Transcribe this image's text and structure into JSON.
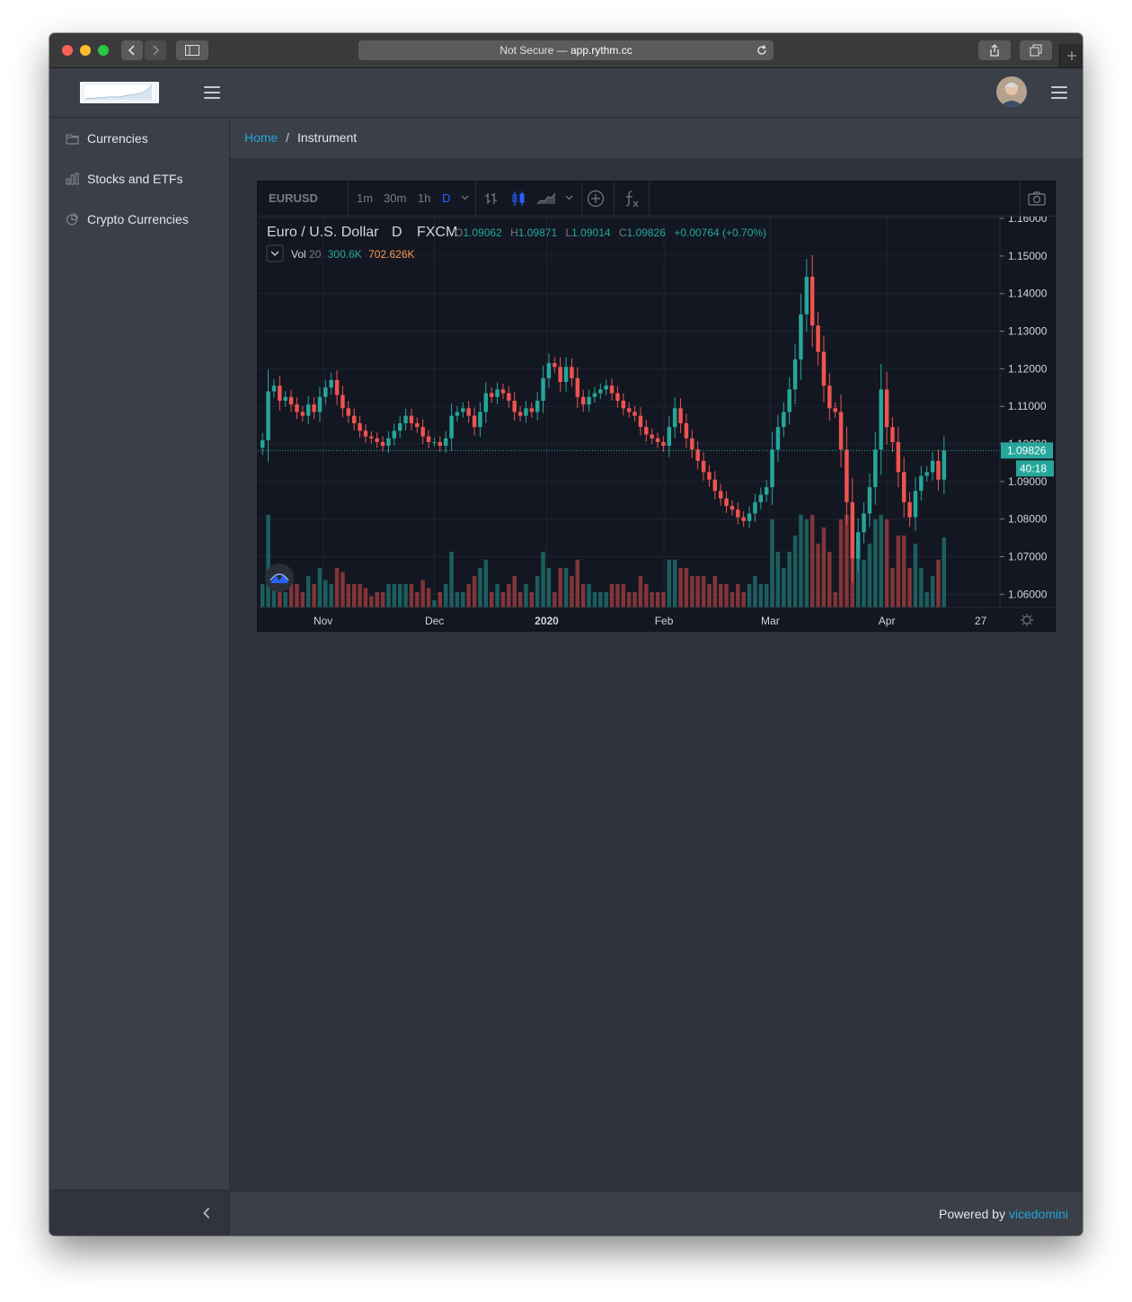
{
  "browser": {
    "url_prefix": "Not Secure —",
    "url_host": "app.rythm.cc"
  },
  "sidebar": {
    "items": [
      {
        "label": "Currencies",
        "icon": "folder-icon"
      },
      {
        "label": "Stocks and ETFs",
        "icon": "bar-chart-icon"
      },
      {
        "label": "Crypto Currencies",
        "icon": "pie-chart-icon"
      }
    ]
  },
  "breadcrumb": {
    "home": "Home",
    "separator": "/",
    "current": "Instrument"
  },
  "footer": {
    "prefix": "Powered by",
    "link": "vicedomini"
  },
  "colors": {
    "up": "#26a69a",
    "down": "#ef5350",
    "accent": "#20a8d8",
    "chart_bg": "#131722",
    "app_bg": "#2f333d"
  },
  "chart": {
    "symbol": "EURUSD",
    "timeframes": [
      "1m",
      "30m",
      "1h",
      "D"
    ],
    "active_timeframe": "D",
    "title": "Euro / U.S. Dollar",
    "interval": "D",
    "exchange": "FXCM",
    "ohlc": {
      "o_label": "O",
      "o": "1.09062",
      "h_label": "H",
      "h": "1.09871",
      "l_label": "L",
      "l": "1.09014",
      "c_label": "C",
      "c": "1.09826",
      "change": "+0.00764 (+0.70%)"
    },
    "volume": {
      "label": "Vol",
      "length": "20",
      "value": "300.6K",
      "ma": "702.626K"
    },
    "price_label": "1.09826",
    "countdown": "40:18",
    "y_ticks": [
      "1.16000",
      "1.15000",
      "1.14000",
      "1.13000",
      "1.12000",
      "1.11000",
      "1.10000",
      "1.09000",
      "1.08000",
      "1.07000",
      "1.06000"
    ],
    "x_ticks": [
      "Nov",
      "Dec",
      "2020",
      "Feb",
      "Mar",
      "Apr",
      "27"
    ]
  },
  "chart_data": {
    "type": "candlestick",
    "title": "Euro / U.S. Dollar",
    "xlabel": "",
    "ylabel": "",
    "ylim": [
      1.0565,
      1.1605
    ],
    "x_ticks": [
      "Nov",
      "Dec",
      "2020",
      "Feb",
      "Mar",
      "Apr",
      "27"
    ],
    "last_price": 1.09826,
    "grid": true,
    "series": [
      {
        "name": "EURUSD",
        "values": [
          1.101,
          1.114,
          1.1155,
          1.1115,
          1.1125,
          1.1105,
          1.1085,
          1.1075,
          1.1105,
          1.1085,
          1.1125,
          1.115,
          1.117,
          1.113,
          1.1095,
          1.1075,
          1.1055,
          1.1035,
          1.102,
          1.1015,
          1.1005,
          1.0995,
          1.1015,
          1.1035,
          1.1055,
          1.1075,
          1.1055,
          1.1045,
          1.102,
          1.1005,
          1.1005,
          1.0995,
          1.1015,
          1.1075,
          1.1085,
          1.1095,
          1.1075,
          1.1045,
          1.1085,
          1.1135,
          1.1125,
          1.1145,
          1.1135,
          1.1115,
          1.1085,
          1.1075,
          1.1095,
          1.1085,
          1.1115,
          1.1175,
          1.1215,
          1.1205,
          1.1165,
          1.1205,
          1.1175,
          1.1125,
          1.1105,
          1.1125,
          1.1135,
          1.1145,
          1.1155,
          1.1135,
          1.1115,
          1.1095,
          1.1085,
          1.1075,
          1.1045,
          1.1025,
          1.1015,
          1.1005,
          1.0995,
          1.1045,
          1.1095,
          1.1055,
          1.1015,
          1.0985,
          1.0955,
          1.0925,
          1.0905,
          1.0875,
          1.0855,
          1.0835,
          1.0825,
          1.0805,
          1.0795,
          1.0815,
          1.0845,
          1.0865,
          1.0885,
          1.0985,
          1.1045,
          1.1085,
          1.1145,
          1.1225,
          1.1345,
          1.1445,
          1.1315,
          1.1245,
          1.1155,
          1.1095,
          1.1085,
          1.0985,
          1.0845,
          1.0695,
          1.0765,
          1.0815,
          1.0885,
          1.0985,
          1.1145,
          1.1045,
          1.1005,
          1.0925,
          1.0845,
          1.0805,
          1.0875,
          1.0915,
          1.0925,
          1.0955,
          1.0905,
          1.09826
        ]
      }
    ]
  }
}
